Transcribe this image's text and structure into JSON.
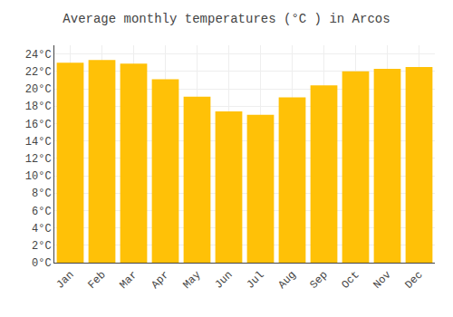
{
  "chart_data": {
    "type": "bar",
    "title": "Average monthly temperatures (°C ) in Arcos",
    "categories": [
      "Jan",
      "Feb",
      "Mar",
      "Apr",
      "May",
      "Jun",
      "Jul",
      "Aug",
      "Sep",
      "Oct",
      "Nov",
      "Dec"
    ],
    "values": [
      23.0,
      23.3,
      22.9,
      21.1,
      19.1,
      17.4,
      17.0,
      19.0,
      20.4,
      22.0,
      22.3,
      22.5
    ],
    "color": "#FFC107",
    "ylim": [
      0,
      25
    ],
    "yticks": [
      {
        "value": 0,
        "label": "0°C"
      },
      {
        "value": 2,
        "label": "2°C"
      },
      {
        "value": 4,
        "label": "4°C"
      },
      {
        "value": 6,
        "label": "6°C"
      },
      {
        "value": 8,
        "label": "8°C"
      },
      {
        "value": 10,
        "label": "10°C"
      },
      {
        "value": 12,
        "label": "12°C"
      },
      {
        "value": 14,
        "label": "14°C"
      },
      {
        "value": 16,
        "label": "16°C"
      },
      {
        "value": 18,
        "label": "18°C"
      },
      {
        "value": 20,
        "label": "20°C"
      },
      {
        "value": 22,
        "label": "22°C"
      },
      {
        "value": 24,
        "label": "24°C"
      }
    ],
    "grid": true
  }
}
